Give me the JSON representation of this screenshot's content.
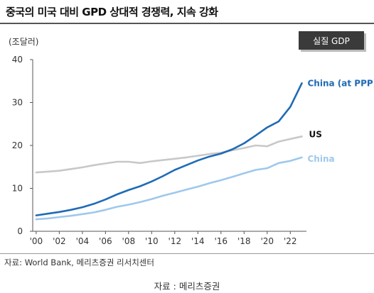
{
  "header": {
    "title": "중국의 미국 대비 GPD 상대적 경쟁력, 지속 강화",
    "unit": "(조달러)",
    "badge": "실질 GDP"
  },
  "footer": {
    "source": "자료: World Bank, 메리츠증권 리서치센터",
    "caption": "자료 : 메리츠증권"
  },
  "chart_data": {
    "type": "line",
    "x": [
      2000,
      2001,
      2002,
      2003,
      2004,
      2005,
      2006,
      2007,
      2008,
      2009,
      2010,
      2011,
      2012,
      2013,
      2014,
      2015,
      2016,
      2017,
      2018,
      2019,
      2020,
      2021,
      2022,
      2023
    ],
    "x_tick_values": [
      2000,
      2002,
      2004,
      2006,
      2008,
      2010,
      2012,
      2014,
      2016,
      2018,
      2020,
      2022
    ],
    "x_tick_labels": [
      "'00",
      "'02",
      "'04",
      "'06",
      "'08",
      "'10",
      "'12",
      "'14",
      "'16",
      "'18",
      "'20",
      "'22"
    ],
    "ylim": [
      0,
      40
    ],
    "y_ticks": [
      0,
      10,
      20,
      30,
      40
    ],
    "grid": false,
    "series": [
      {
        "name": "China (at PPP)",
        "color": "#1f6bb5",
        "values": [
          3.7,
          4.1,
          4.5,
          5.0,
          5.6,
          6.4,
          7.4,
          8.6,
          9.6,
          10.5,
          11.6,
          12.9,
          14.3,
          15.4,
          16.5,
          17.4,
          18.1,
          19.1,
          20.5,
          22.3,
          24.2,
          25.6,
          29.0,
          34.5
        ]
      },
      {
        "name": "US",
        "color": "#c8c8c8",
        "label_color": "#111111",
        "values": [
          13.7,
          13.9,
          14.1,
          14.5,
          14.9,
          15.4,
          15.8,
          16.2,
          16.2,
          15.9,
          16.3,
          16.6,
          16.9,
          17.2,
          17.6,
          18.0,
          18.3,
          18.9,
          19.4,
          20.0,
          19.8,
          20.9,
          21.5,
          22.1
        ]
      },
      {
        "name": "China",
        "color": "#9fc8ec",
        "values": [
          2.8,
          3.0,
          3.3,
          3.6,
          4.0,
          4.4,
          5.0,
          5.7,
          6.2,
          6.8,
          7.5,
          8.3,
          9.0,
          9.7,
          10.4,
          11.2,
          11.9,
          12.7,
          13.5,
          14.3,
          14.7,
          15.9,
          16.4,
          17.2
        ]
      }
    ]
  }
}
